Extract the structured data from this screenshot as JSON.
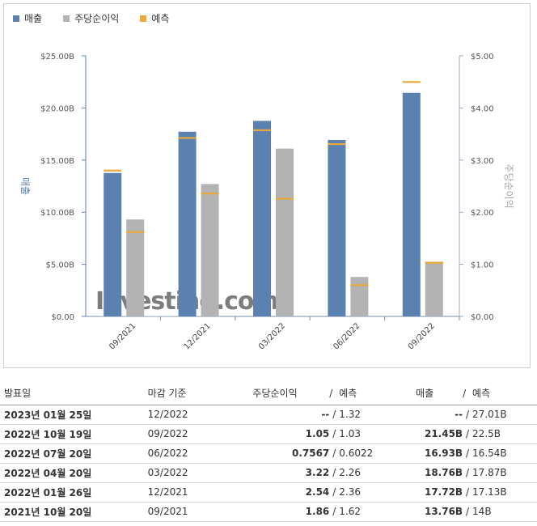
{
  "legend": {
    "revenue": {
      "label": "매출",
      "color": "#5b81b0"
    },
    "eps": {
      "label": "주당순이익",
      "color": "#b3b3b3"
    },
    "forecast": {
      "label": "예측",
      "color": "#e8a83c"
    }
  },
  "chart_data": {
    "type": "bar",
    "categories": [
      "09/2021",
      "12/2021",
      "03/2022",
      "06/2022",
      "09/2022"
    ],
    "series": [
      {
        "name": "매출",
        "axis": "left",
        "values": [
          13.76,
          17.72,
          18.76,
          16.93,
          21.45
        ],
        "forecast": [
          14.0,
          17.13,
          17.87,
          16.54,
          22.5
        ]
      },
      {
        "name": "주당순이익",
        "axis": "right",
        "values": [
          1.86,
          2.54,
          3.22,
          0.7567,
          1.05
        ],
        "forecast": [
          1.62,
          2.36,
          2.26,
          0.6022,
          1.03
        ]
      }
    ],
    "ylabel_left": "매출",
    "ylabel_right": "주당순이익",
    "ylim_left": [
      0,
      25
    ],
    "ylim_right": [
      0,
      5
    ],
    "yticks_left": [
      "$0.00",
      "$5.00B",
      "$10.00B",
      "$15.00B",
      "$20.00B",
      "$25.00B"
    ],
    "yticks_right": [
      "$0.00",
      "$1.00",
      "$2.00",
      "$3.00",
      "$4.00",
      "$5.00"
    ],
    "watermark": "Investing.com"
  },
  "table": {
    "headers": {
      "date": "발표일",
      "period": "마감 기준",
      "eps": "주당순이익",
      "eps_forecast": "예측",
      "revenue": "매출",
      "revenue_forecast": "예측",
      "sep": "/"
    },
    "rows": [
      {
        "date": "2023년 01월 25일",
        "period": "12/2022",
        "eps": "--",
        "eps_class": "bold",
        "eps_forecast": "1.32",
        "revenue": "--",
        "rev_class": "bold",
        "revenue_forecast": "27.01B"
      },
      {
        "date": "2022년 10월 19일",
        "period": "09/2022",
        "eps": "1.05",
        "eps_class": "red",
        "eps_forecast": "1.03",
        "revenue": "21.45B",
        "rev_class": "blue",
        "revenue_forecast": "22.5B"
      },
      {
        "date": "2022년 07월 20일",
        "period": "06/2022",
        "eps": "0.7567",
        "eps_class": "red",
        "eps_forecast": "0.6022",
        "revenue": "16.93B",
        "rev_class": "red",
        "revenue_forecast": "16.54B"
      },
      {
        "date": "2022년 04월 20일",
        "period": "03/2022",
        "eps": "3.22",
        "eps_class": "red",
        "eps_forecast": "2.26",
        "revenue": "18.76B",
        "rev_class": "red",
        "revenue_forecast": "17.87B"
      },
      {
        "date": "2022년 01월 26일",
        "period": "12/2021",
        "eps": "2.54",
        "eps_class": "red",
        "eps_forecast": "2.36",
        "revenue": "17.72B",
        "rev_class": "red",
        "revenue_forecast": "17.13B"
      },
      {
        "date": "2021년 10월 20일",
        "period": "09/2021",
        "eps": "1.86",
        "eps_class": "red",
        "eps_forecast": "1.62",
        "revenue": "13.76B",
        "rev_class": "blue",
        "revenue_forecast": "14B"
      }
    ]
  }
}
